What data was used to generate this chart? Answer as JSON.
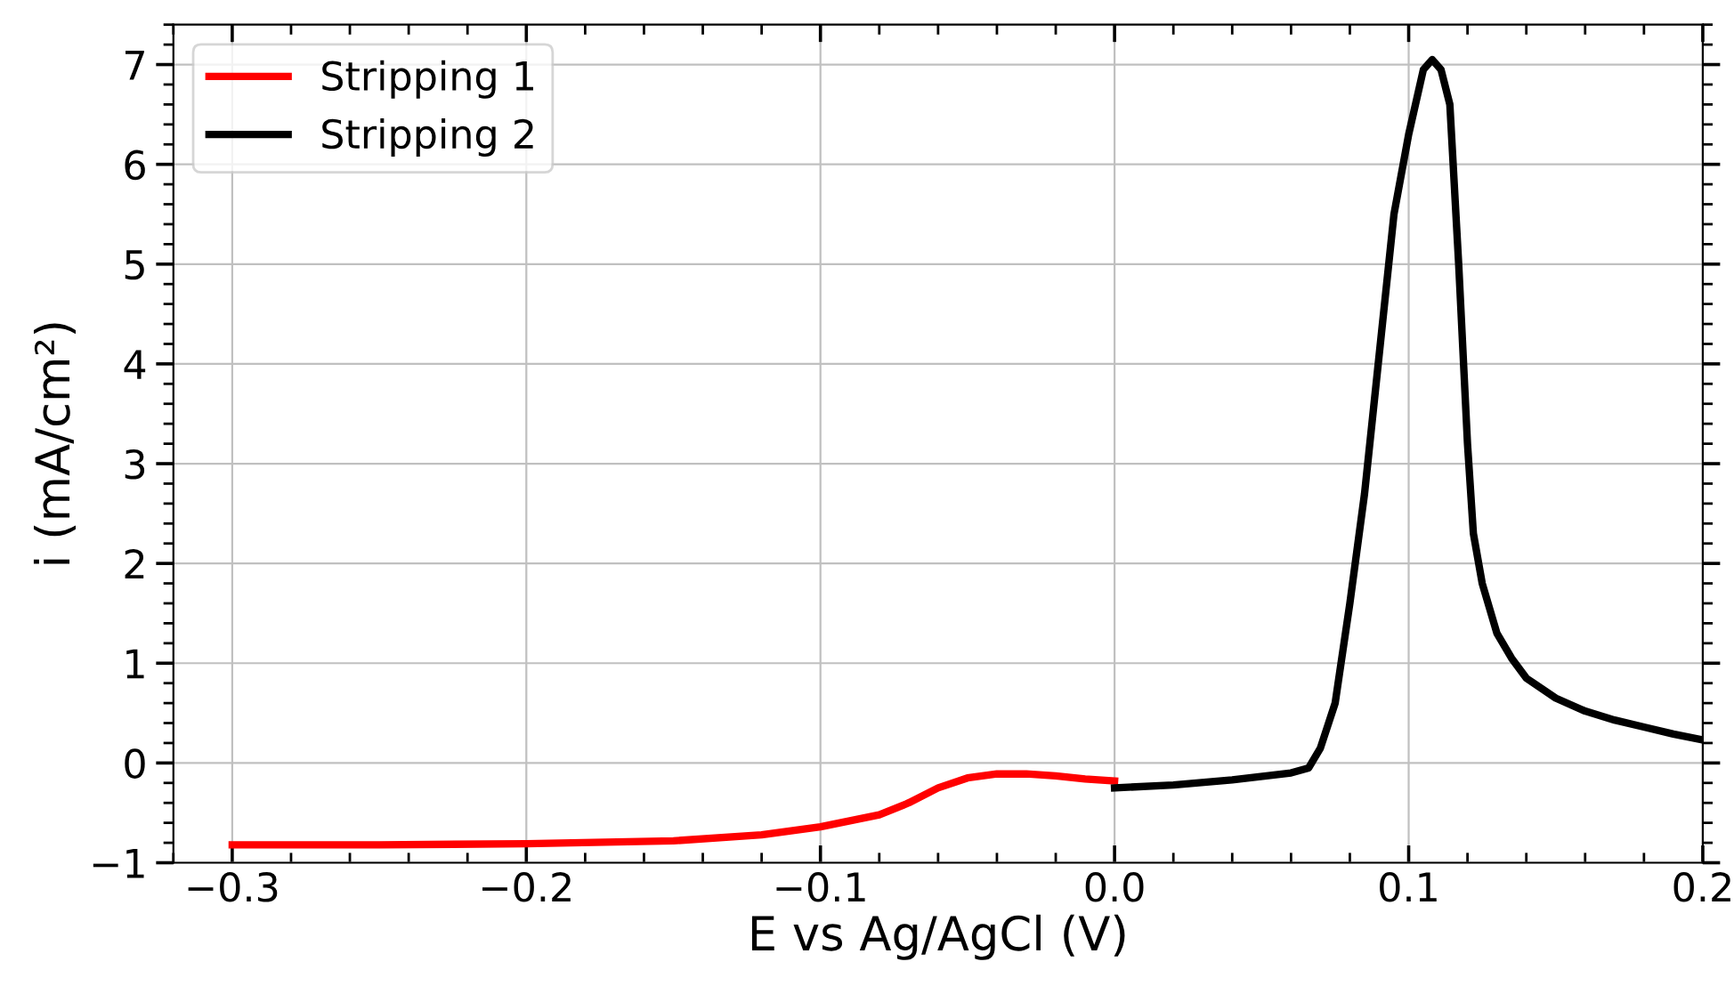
{
  "chart_data": {
    "type": "line",
    "xlabel": "E vs Ag/AgCl (V)",
    "ylabel": "i (mA/cm²)",
    "xlim": [
      -0.32,
      0.2
    ],
    "xticks": [
      {
        "value": -0.3,
        "label": "−0.3"
      },
      {
        "value": -0.2,
        "label": "−0.2"
      },
      {
        "value": -0.1,
        "label": "−0.1"
      },
      {
        "value": 0.0,
        "label": "0.0"
      },
      0.1,
      0.2
    ],
    "ylim": [
      -1,
      7.4
    ],
    "yticks": [
      {
        "value": -1,
        "label": "−1"
      },
      0,
      1,
      2,
      3,
      4,
      5,
      6,
      7
    ],
    "grid": true,
    "legend": "top left",
    "marker": "none",
    "line_style": "solid",
    "series": [
      {
        "name": "Stripping 1",
        "color": "#ff0000",
        "x": [
          -0.3,
          -0.25,
          -0.2,
          -0.15,
          -0.12,
          -0.1,
          -0.08,
          -0.07,
          -0.06,
          -0.05,
          -0.04,
          -0.03,
          -0.02,
          -0.01,
          0.0
        ],
        "values": [
          -0.82,
          -0.82,
          -0.81,
          -0.78,
          -0.72,
          -0.64,
          -0.52,
          -0.4,
          -0.25,
          -0.15,
          -0.11,
          -0.11,
          -0.13,
          -0.16,
          -0.18
        ]
      },
      {
        "name": "Stripping 2",
        "color": "#000000",
        "x": [
          0.0,
          0.02,
          0.04,
          0.06,
          0.066,
          0.07,
          0.075,
          0.08,
          0.085,
          0.09,
          0.095,
          0.1,
          0.105,
          0.108,
          0.111,
          0.114,
          0.117,
          0.12,
          0.122,
          0.125,
          0.13,
          0.135,
          0.14,
          0.15,
          0.16,
          0.17,
          0.18,
          0.19,
          0.2
        ],
        "values": [
          -0.25,
          -0.22,
          -0.17,
          -0.1,
          -0.05,
          0.15,
          0.6,
          1.6,
          2.7,
          4.1,
          5.5,
          6.3,
          6.95,
          7.05,
          6.95,
          6.6,
          5.0,
          3.2,
          2.3,
          1.8,
          1.3,
          1.05,
          0.85,
          0.65,
          0.52,
          0.43,
          0.36,
          0.29,
          0.23
        ]
      }
    ]
  }
}
